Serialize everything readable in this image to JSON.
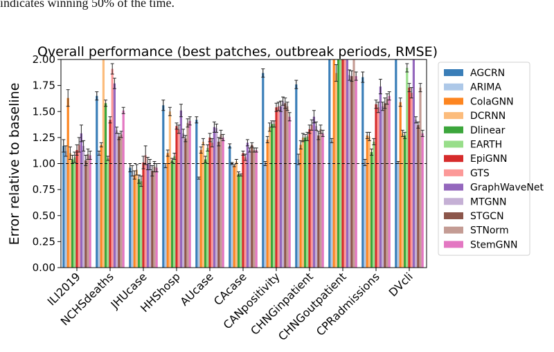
{
  "caption": "indicates winning 50% of the time.",
  "chart_data": {
    "type": "bar",
    "title": "Overall performance (best patches, outbreak periods, RMSE)",
    "ylabel": "Error relative to baseline",
    "xlabel": "",
    "ylim": [
      0,
      2.0
    ],
    "yticks": [
      "0.00",
      "0.25",
      "0.50",
      "0.75",
      "1.00",
      "1.25",
      "1.50",
      "1.75",
      "2.00"
    ],
    "baseline": 1.0,
    "legend_position": "outside-right",
    "categories": [
      "ILI2019",
      "NCHSdeaths",
      "JHUcase",
      "HHShosp",
      "AUcase",
      "CAcase",
      "CANpositivity",
      "CHNGinpatient",
      "CHNGoutpatient",
      "CPRadmissions",
      "DVcli"
    ],
    "series": [
      {
        "name": "AGCRN",
        "color": "#3a7eb8",
        "values": [
          1.17,
          1.65,
          0.96,
          1.56,
          1.42,
          1.17,
          1.87,
          1.76,
          2.05,
          1.83,
          2.05
        ],
        "errors": [
          0.06,
          0.04,
          0.04,
          0.05,
          0.03,
          0.02,
          0.04,
          0.04,
          0.05,
          0.05,
          0.05
        ]
      },
      {
        "name": "ARIMA",
        "color": "#adc8e8",
        "values": [
          1.12,
          1.1,
          0.93,
          0.98,
          0.86,
          1.0,
          1.0,
          1.04,
          1.22,
          1.01,
          1.01
        ],
        "errors": [
          0.05,
          0.02,
          0.05,
          0.02,
          0.01,
          0.01,
          0.02,
          0.05,
          0.02,
          0.03,
          0.01
        ]
      },
      {
        "name": "ColaGNN",
        "color": "#fd8520",
        "values": [
          1.63,
          1.18,
          0.89,
          1.1,
          1.13,
          0.98,
          1.23,
          1.18,
          2.05,
          1.27,
          1.59
        ],
        "errors": [
          0.08,
          0.02,
          0.04,
          0.03,
          0.03,
          0.01,
          0.03,
          0.04,
          0.06,
          0.03,
          0.04
        ]
      },
      {
        "name": "DCRNN",
        "color": "#fcbc7c",
        "values": [
          1.1,
          2.05,
          0.94,
          1.5,
          1.21,
          1.02,
          1.35,
          1.25,
          1.87,
          1.26,
          1.29
        ],
        "errors": [
          0.06,
          0.05,
          0.05,
          0.04,
          0.03,
          0.02,
          0.04,
          0.04,
          0.08,
          0.04,
          0.03
        ]
      },
      {
        "name": "Dlinear",
        "color": "#3ca63c",
        "values": [
          1.04,
          1.58,
          0.85,
          1.03,
          1.04,
          0.9,
          1.38,
          1.25,
          2.05,
          1.11,
          1.27
        ],
        "errors": [
          0.04,
          0.03,
          0.04,
          0.02,
          0.03,
          0.02,
          0.03,
          0.03,
          0.05,
          0.03,
          0.03
        ]
      },
      {
        "name": "EARTH",
        "color": "#98de8a",
        "values": [
          1.06,
          1.05,
          0.83,
          1.07,
          1.15,
          0.89,
          1.38,
          1.26,
          2.05,
          1.21,
          1.92
        ],
        "errors": [
          0.05,
          0.02,
          0.05,
          0.03,
          0.03,
          0.01,
          0.03,
          0.04,
          0.05,
          0.03,
          0.04
        ]
      },
      {
        "name": "EpiGNN",
        "color": "#d62b2b",
        "values": [
          1.13,
          1.42,
          1.01,
          1.36,
          1.25,
          1.1,
          1.54,
          1.33,
          2.05,
          1.57,
          1.73
        ],
        "errors": [
          0.05,
          0.03,
          0.06,
          0.03,
          0.04,
          0.02,
          0.04,
          0.04,
          0.05,
          0.04,
          0.04
        ]
      },
      {
        "name": "GTS",
        "color": "#fc9998",
        "values": [
          1.18,
          1.91,
          1.08,
          1.33,
          1.2,
          1.06,
          1.55,
          1.37,
          2.05,
          1.54,
          1.68
        ],
        "errors": [
          0.07,
          0.05,
          0.09,
          0.04,
          0.04,
          0.03,
          0.04,
          0.05,
          0.06,
          0.05,
          0.05
        ]
      },
      {
        "name": "GraphWaveNet",
        "color": "#9467bd",
        "values": [
          1.29,
          1.77,
          1.0,
          1.51,
          1.35,
          1.2,
          1.55,
          1.45,
          2.05,
          1.74,
          2.05
        ],
        "errors": [
          0.08,
          0.05,
          0.06,
          0.06,
          0.05,
          0.03,
          0.05,
          0.06,
          0.06,
          0.07,
          0.05
        ]
      },
      {
        "name": "MTGNN",
        "color": "#c5b0d5",
        "values": [
          1.17,
          1.32,
          0.99,
          1.29,
          1.34,
          1.13,
          1.6,
          1.36,
          1.85,
          1.55,
          1.42
        ],
        "errors": [
          0.05,
          0.03,
          0.05,
          0.04,
          0.04,
          0.02,
          0.04,
          0.04,
          0.05,
          0.04,
          0.03
        ]
      },
      {
        "name": "STGCN",
        "color": "#8c564b",
        "values": [
          1.03,
          1.26,
          0.93,
          1.24,
          1.21,
          1.18,
          1.58,
          1.27,
          1.84,
          1.58,
          1.37
        ],
        "errors": [
          0.05,
          0.03,
          0.05,
          0.03,
          0.04,
          0.02,
          0.05,
          0.04,
          0.05,
          0.05,
          0.03
        ]
      },
      {
        "name": "STNorm",
        "color": "#c49c94",
        "values": [
          1.09,
          1.28,
          0.97,
          1.39,
          1.28,
          1.13,
          1.55,
          1.33,
          2.05,
          1.62,
          1.73
        ],
        "errors": [
          0.05,
          0.03,
          0.05,
          0.04,
          0.04,
          0.02,
          0.04,
          0.04,
          0.05,
          0.05,
          0.04
        ]
      },
      {
        "name": "StemGNN",
        "color": "#e377c2",
        "values": [
          1.08,
          1.51,
          0.96,
          1.41,
          1.25,
          1.13,
          1.45,
          1.29,
          1.84,
          1.65,
          1.29
        ],
        "errors": [
          0.04,
          0.03,
          0.04,
          0.04,
          0.03,
          0.02,
          0.04,
          0.03,
          0.04,
          0.04,
          0.03
        ]
      }
    ]
  }
}
